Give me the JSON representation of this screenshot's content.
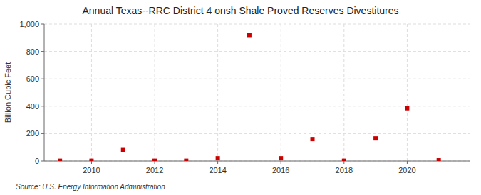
{
  "chart_data": {
    "type": "scatter",
    "title": "Annual Texas--RRC District 4 onsh Shale Proved Reserves Divestitures",
    "ylabel": "Billion Cubic Feet",
    "source": "Source: U.S. Energy Information Administration",
    "x": [
      2009,
      2010,
      2011,
      2012,
      2013,
      2014,
      2015,
      2016,
      2017,
      2018,
      2019,
      2020,
      2021
    ],
    "values": [
      2,
      2,
      80,
      2,
      2,
      20,
      920,
      20,
      160,
      2,
      165,
      385,
      5
    ],
    "color": "#cc0000",
    "marker": "square",
    "xlim": [
      2008.5,
      2022.0
    ],
    "xticks": [
      2010,
      2012,
      2014,
      2016,
      2018,
      2020
    ],
    "ylim": [
      0,
      1000
    ],
    "yticks": [
      0,
      200,
      400,
      600,
      800,
      {
        "value": 1000,
        "label": "1,000"
      }
    ],
    "grid": true
  }
}
